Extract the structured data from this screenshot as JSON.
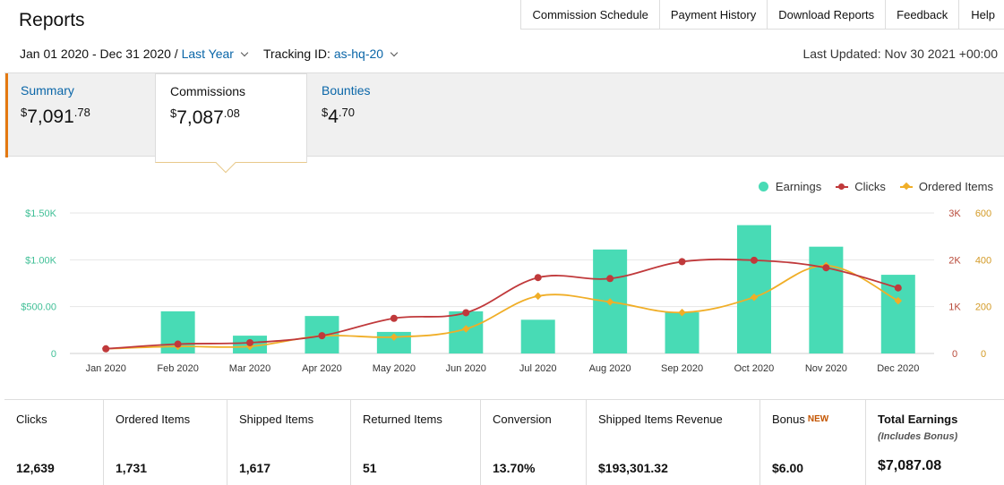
{
  "header": {
    "title": "Reports",
    "links": [
      "Commission Schedule",
      "Payment History",
      "Download Reports",
      "Feedback",
      "Help"
    ]
  },
  "filters": {
    "date_range": "Jan 01 2020 - Dec 31 2020 /",
    "period": "Last Year",
    "tracking_label": "Tracking ID:",
    "tracking_id": "as-hq-20",
    "last_updated": "Last Updated: Nov 30 2021 +00:00"
  },
  "tabs": [
    {
      "label": "Summary",
      "currency": "$",
      "whole": "7,091",
      "cents": ".78"
    },
    {
      "label": "Commissions",
      "currency": "$",
      "whole": "7,087",
      "cents": ".08"
    },
    {
      "label": "Bounties",
      "currency": "$",
      "whole": "4",
      "cents": ".70"
    }
  ],
  "chart_data": {
    "type": "bar",
    "categories": [
      "Jan 2020",
      "Feb 2020",
      "Mar 2020",
      "Apr 2020",
      "May 2020",
      "Jun 2020",
      "Jul 2020",
      "Aug 2020",
      "Sep 2020",
      "Oct 2020",
      "Nov 2020",
      "Dec 2020"
    ],
    "series": [
      {
        "name": "Earnings",
        "type": "bar",
        "axis": "left",
        "color": "#48dbb5",
        "values": [
          0,
          450,
          190,
          400,
          230,
          450,
          360,
          1110,
          440,
          1370,
          1140,
          840
        ]
      },
      {
        "name": "Clicks",
        "type": "line",
        "axis": "right1",
        "color": "#c0393b",
        "values": [
          100,
          200,
          230,
          380,
          750,
          870,
          1620,
          1600,
          1960,
          1990,
          1830,
          1400
        ]
      },
      {
        "name": "Ordered Items",
        "type": "line",
        "axis": "right2",
        "color": "#f0ae27",
        "values": [
          20,
          30,
          30,
          75,
          70,
          105,
          245,
          220,
          175,
          240,
          375,
          225
        ]
      }
    ],
    "left_axis": {
      "ticks": [
        "0",
        "$500.00",
        "$1.00K",
        "$1.50K"
      ],
      "ylim": [
        0,
        1500
      ],
      "color": "#3fbf96"
    },
    "right_axis_1": {
      "ticks": [
        "0",
        "1K",
        "2K",
        "3K"
      ],
      "ylim": [
        0,
        3000
      ],
      "color": "#b84a3a"
    },
    "right_axis_2": {
      "ticks": [
        "0",
        "200",
        "400",
        "600"
      ],
      "ylim": [
        0,
        600
      ],
      "color": "#d39a26"
    },
    "legend": [
      "Earnings",
      "Clicks",
      "Ordered Items"
    ],
    "legend_position": "top-right",
    "grid": true
  },
  "stats": [
    {
      "label": "Clicks",
      "value": "12,639"
    },
    {
      "label": "Ordered Items",
      "value": "1,731"
    },
    {
      "label": "Shipped Items",
      "value": "1,617"
    },
    {
      "label": "Returned Items",
      "value": "51"
    },
    {
      "label": "Conversion",
      "value": "13.70%"
    },
    {
      "label": "Shipped Items Revenue",
      "value": "$193,301.32"
    },
    {
      "label": "Bonus",
      "badge": "NEW",
      "value": "$6.00"
    },
    {
      "label": "Total Earnings",
      "note": "(Includes Bonus)",
      "value": "$7,087.08"
    }
  ]
}
